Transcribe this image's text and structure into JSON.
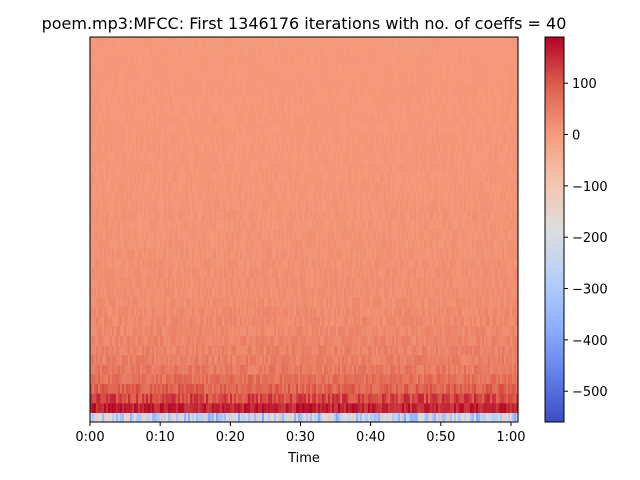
{
  "chart_data": {
    "type": "heatmap",
    "title": "poem.mp3:MFCC: First 1346176 iterations with no. of coeffs = 40",
    "xlabel": "Time",
    "ylabel": "",
    "x_range_seconds": [
      0,
      61
    ],
    "x_ticks": [
      "0:00",
      "0:10",
      "0:20",
      "0:30",
      "0:40",
      "0:50",
      "1:00"
    ],
    "n_coefficients": 40,
    "value_range": [
      -560,
      190
    ],
    "colormap": "coolwarm",
    "colorbar_ticks": [
      "100",
      "0",
      "−100",
      "−200",
      "−300",
      "−400",
      "−500"
    ],
    "row_means_low_to_high": [
      -250,
      160,
      120,
      90,
      70,
      55,
      45,
      40,
      35,
      30,
      28,
      25,
      22,
      20,
      20,
      18,
      16,
      15,
      14,
      13,
      12,
      12,
      11,
      10,
      10,
      9,
      9,
      8,
      8,
      8,
      7,
      7,
      6,
      6,
      6,
      5,
      5,
      5,
      4,
      4
    ],
    "row_variation_low_to_high": [
      140,
      30,
      40,
      30,
      25,
      22,
      20,
      18,
      16,
      15,
      14,
      13,
      12,
      11,
      10,
      10,
      9,
      9,
      8,
      8,
      7,
      7,
      7,
      6,
      6,
      6,
      5,
      5,
      5,
      5,
      4,
      4,
      4,
      4,
      4,
      3,
      3,
      3,
      3,
      3
    ],
    "grid": false
  }
}
